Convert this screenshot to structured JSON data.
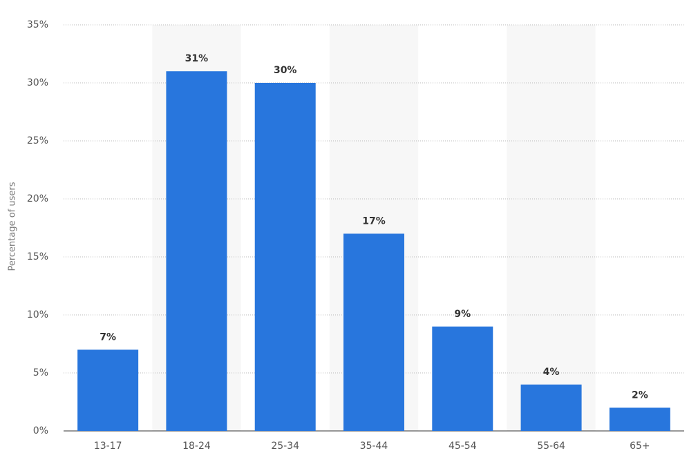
{
  "chart_data": {
    "type": "bar",
    "y_label": "Percentage of users",
    "categories": [
      "13-17",
      "18-24",
      "25-34",
      "35-44",
      "45-54",
      "55-64",
      "65+"
    ],
    "values": [
      7,
      31,
      30,
      17,
      9,
      4,
      2
    ],
    "value_labels": [
      "7%",
      "31%",
      "30%",
      "17%",
      "9%",
      "4%",
      "2%"
    ],
    "color": "#2876dd",
    "ylim": [
      0,
      35
    ],
    "yticks": [
      {
        "value": 0,
        "label": "0%"
      },
      {
        "value": 5,
        "label": "5%"
      },
      {
        "value": 10,
        "label": "10%"
      },
      {
        "value": 15,
        "label": "15%"
      },
      {
        "value": 20,
        "label": "20%"
      },
      {
        "value": 25,
        "label": "25%"
      },
      {
        "value": 30,
        "label": "30%"
      },
      {
        "value": 35,
        "label": "35%"
      }
    ],
    "grid": true
  }
}
